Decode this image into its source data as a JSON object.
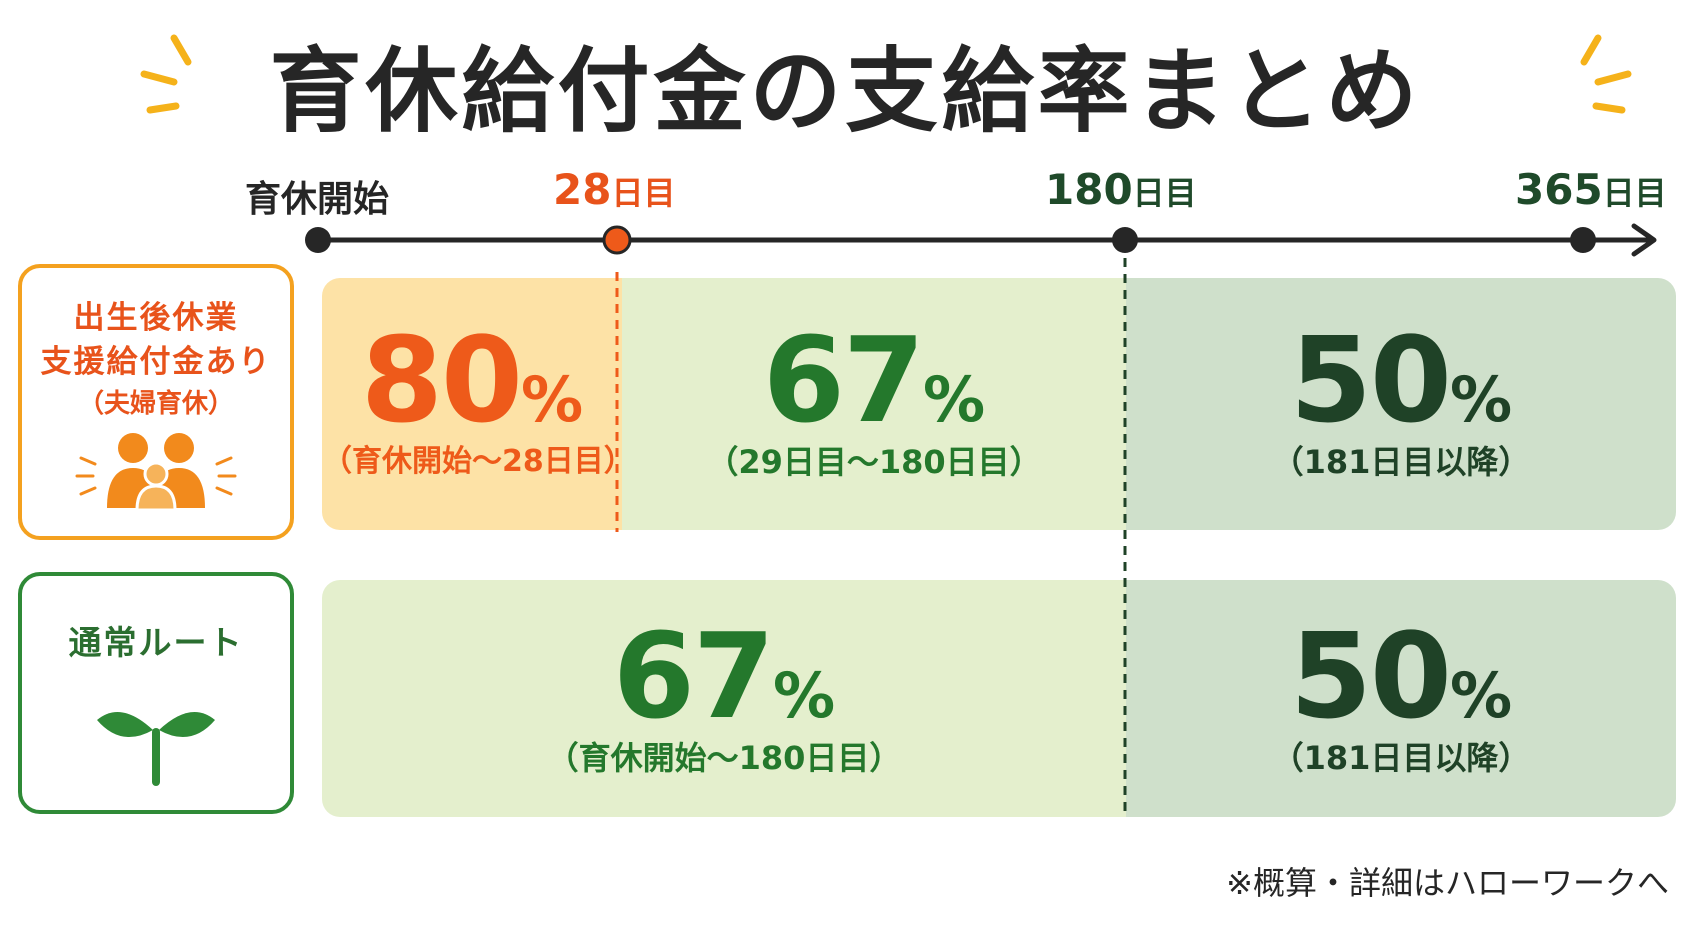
{
  "title": "育休給付金の支給率まとめ",
  "timeline": {
    "start_label": "育休開始",
    "markers": [
      {
        "num": "28",
        "unit": "日目"
      },
      {
        "num": "180",
        "unit": "日目"
      },
      {
        "num": "365",
        "unit": "日目"
      }
    ]
  },
  "categories": {
    "couple": {
      "line1": "出生後休業",
      "line2": "支援給付金あり",
      "line3": "（夫婦育休）",
      "icon": "family-icon"
    },
    "normal": {
      "line1": "通常ルート",
      "icon": "sprout-icon"
    }
  },
  "rows": {
    "couple": [
      {
        "rate": "80",
        "unit": "%",
        "period": "（育休開始〜28日目）"
      },
      {
        "rate": "67",
        "unit": "%",
        "period": "（29日目〜180日目）"
      },
      {
        "rate": "50",
        "unit": "%",
        "period": "（181日目以降）"
      }
    ],
    "normal": [
      {
        "rate": "67",
        "unit": "%",
        "period": "（育休開始〜180日目）"
      },
      {
        "rate": "50",
        "unit": "%",
        "period": "（181日目以降）"
      }
    ]
  },
  "footnote": "※概算・詳細はハローワークへ",
  "colors": {
    "orange": "#ee5a1a",
    "amber_border": "#f4a11f",
    "green": "#24782c",
    "dark_green": "#1f4227",
    "panel_orange": "#fde2a6",
    "panel_light_green": "#e4efcd",
    "panel_grey_green": "#cfe0cb"
  }
}
